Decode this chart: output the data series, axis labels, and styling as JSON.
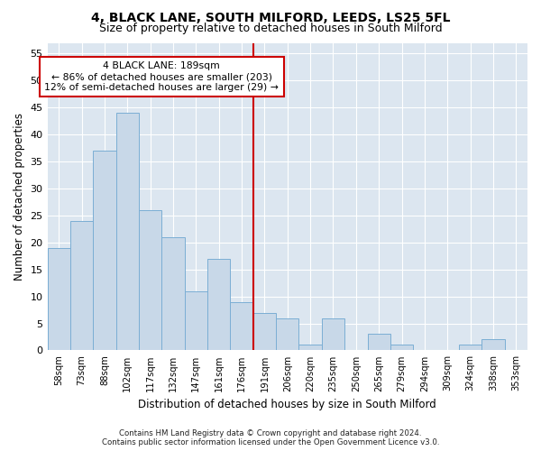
{
  "title": "4, BLACK LANE, SOUTH MILFORD, LEEDS, LS25 5FL",
  "subtitle": "Size of property relative to detached houses in South Milford",
  "xlabel": "Distribution of detached houses by size in South Milford",
  "ylabel": "Number of detached properties",
  "bar_labels": [
    "58sqm",
    "73sqm",
    "88sqm",
    "102sqm",
    "117sqm",
    "132sqm",
    "147sqm",
    "161sqm",
    "176sqm",
    "191sqm",
    "206sqm",
    "220sqm",
    "235sqm",
    "250sqm",
    "265sqm",
    "279sqm",
    "294sqm",
    "309sqm",
    "324sqm",
    "338sqm",
    "353sqm"
  ],
  "bar_heights": [
    19,
    24,
    37,
    44,
    26,
    21,
    11,
    17,
    9,
    7,
    6,
    1,
    6,
    0,
    3,
    1,
    0,
    0,
    1,
    2,
    0
  ],
  "bar_color": "#c8d8e8",
  "bar_edge_color": "#7baed4",
  "vline_color": "#cc0000",
  "annotation_line1": "4 BLACK LANE: 189sqm",
  "annotation_line2": "← 86% of detached houses are smaller (203)",
  "annotation_line3": "12% of semi-detached houses are larger (29) →",
  "annotation_box_color": "#cc0000",
  "ylim": [
    0,
    57
  ],
  "yticks": [
    0,
    5,
    10,
    15,
    20,
    25,
    30,
    35,
    40,
    45,
    50,
    55
  ],
  "bg_color": "#dce6f0",
  "fig_bg_color": "#f0f4f8",
  "footer_line1": "Contains HM Land Registry data © Crown copyright and database right 2024.",
  "footer_line2": "Contains public sector information licensed under the Open Government Licence v3.0.",
  "title_fontsize": 10,
  "subtitle_fontsize": 9,
  "vline_bar_index": 9
}
